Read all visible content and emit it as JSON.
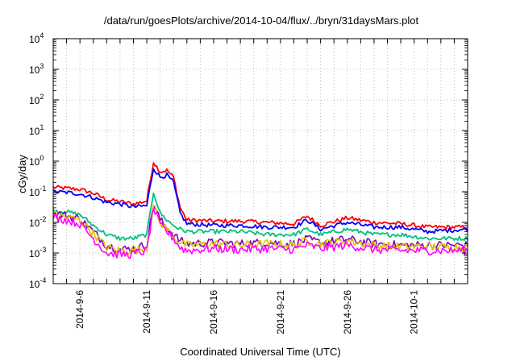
{
  "chart_data": {
    "type": "line",
    "title": "/data/run/goesPlots/archive/2014-10-04/flux/../bryn/31daysMars.plot",
    "xlabel": "Coordinated Universal Time (UTC)",
    "ylabel": "cGy/day",
    "yscale": "log",
    "ylim": [
      0.0001,
      10000
    ],
    "xlim": [
      "2014-09-04",
      "2014-10-05"
    ],
    "grid": true,
    "legend": "none",
    "x_ticks": [
      "2014-9-6",
      "2014-9-11",
      "2014-9-16",
      "2014-9-21",
      "2014-9-26",
      "2014-10-1"
    ],
    "y_ticks": [
      {
        "value": 0.0001,
        "base": "10",
        "exp": "-4"
      },
      {
        "value": 0.001,
        "base": "10",
        "exp": "-3"
      },
      {
        "value": 0.01,
        "base": "10",
        "exp": "-2"
      },
      {
        "value": 0.1,
        "base": "10",
        "exp": "-1"
      },
      {
        "value": 1,
        "base": "10",
        "exp": "0"
      },
      {
        "value": 10,
        "base": "10",
        "exp": "1"
      },
      {
        "value": 100,
        "base": "10",
        "exp": "2"
      },
      {
        "value": 1000,
        "base": "10",
        "exp": "3"
      },
      {
        "value": 10000,
        "base": "10",
        "exp": "4"
      }
    ],
    "series": [
      {
        "color": "#ff0000",
        "x": [
          "2014-09-04",
          "2014-09-05",
          "2014-09-06",
          "2014-09-07",
          "2014-09-08",
          "2014-09-09",
          "2014-09-10",
          "2014-09-11",
          "2014-09-11T12:00",
          "2014-09-12",
          "2014-09-12T12:00",
          "2014-09-13",
          "2014-09-13T12:00",
          "2014-09-14",
          "2014-09-16",
          "2014-09-18",
          "2014-09-20",
          "2014-09-22",
          "2014-09-23",
          "2014-09-24",
          "2014-09-26",
          "2014-09-28",
          "2014-09-30",
          "2014-10-02",
          "2014-10-05"
        ],
        "values": [
          0.14,
          0.13,
          0.12,
          0.09,
          0.055,
          0.048,
          0.04,
          0.05,
          0.95,
          0.45,
          0.5,
          0.3,
          0.03,
          0.012,
          0.011,
          0.011,
          0.01,
          0.009,
          0.016,
          0.008,
          0.014,
          0.01,
          0.009,
          0.007,
          0.007
        ]
      },
      {
        "color": "#0000ff",
        "x": [
          "2014-09-04",
          "2014-09-05",
          "2014-09-06",
          "2014-09-07",
          "2014-09-08",
          "2014-09-09",
          "2014-09-10",
          "2014-09-11",
          "2014-09-11T12:00",
          "2014-09-12",
          "2014-09-12T12:00",
          "2014-09-13",
          "2014-09-13T12:00",
          "2014-09-14",
          "2014-09-16",
          "2014-09-18",
          "2014-09-20",
          "2014-09-22",
          "2014-09-23",
          "2014-09-24",
          "2014-09-26",
          "2014-09-28",
          "2014-09-30",
          "2014-10-02",
          "2014-10-05"
        ],
        "values": [
          0.1,
          0.095,
          0.085,
          0.065,
          0.045,
          0.04,
          0.032,
          0.035,
          0.6,
          0.3,
          0.35,
          0.2,
          0.02,
          0.009,
          0.008,
          0.008,
          0.007,
          0.007,
          0.012,
          0.006,
          0.01,
          0.007,
          0.007,
          0.005,
          0.006
        ]
      },
      {
        "color": "#00c080",
        "x": [
          "2014-09-04",
          "2014-09-05",
          "2014-09-06",
          "2014-09-07",
          "2014-09-08",
          "2014-09-09",
          "2014-09-10",
          "2014-09-11",
          "2014-09-11T12:00",
          "2014-09-12",
          "2014-09-12T12:00",
          "2014-09-13",
          "2014-09-13T12:00",
          "2014-09-14",
          "2014-09-16",
          "2014-09-18",
          "2014-09-20",
          "2014-09-22",
          "2014-09-23",
          "2014-09-24",
          "2014-09-26",
          "2014-09-28",
          "2014-09-30",
          "2014-10-02",
          "2014-10-05"
        ],
        "values": [
          0.025,
          0.022,
          0.018,
          0.008,
          0.004,
          0.003,
          0.003,
          0.004,
          0.1,
          0.02,
          0.012,
          0.008,
          0.006,
          0.005,
          0.005,
          0.005,
          0.004,
          0.004,
          0.006,
          0.004,
          0.006,
          0.004,
          0.004,
          0.003,
          0.003
        ]
      },
      {
        "color": "#8000c0",
        "x": [
          "2014-09-04",
          "2014-09-05",
          "2014-09-06",
          "2014-09-07",
          "2014-09-08",
          "2014-09-09",
          "2014-09-10",
          "2014-09-11",
          "2014-09-11T12:00",
          "2014-09-12",
          "2014-09-12T12:00",
          "2014-09-13",
          "2014-09-13T12:00",
          "2014-09-14",
          "2014-09-16",
          "2014-09-18",
          "2014-09-20",
          "2014-09-22",
          "2014-09-23",
          "2014-09-24",
          "2014-09-26",
          "2014-09-28",
          "2014-09-30",
          "2014-10-02",
          "2014-10-05"
        ],
        "values": [
          0.02,
          0.017,
          0.013,
          0.005,
          0.0018,
          0.0013,
          0.0014,
          0.0018,
          0.04,
          0.012,
          0.007,
          0.004,
          0.0025,
          0.002,
          0.0022,
          0.002,
          0.0022,
          0.002,
          0.0028,
          0.0022,
          0.0028,
          0.002,
          0.0018,
          0.0018,
          0.0018
        ]
      },
      {
        "color": "#e0c000",
        "x": [
          "2014-09-04",
          "2014-09-05",
          "2014-09-06",
          "2014-09-07",
          "2014-09-08",
          "2014-09-09",
          "2014-09-10",
          "2014-09-11",
          "2014-09-11T12:00",
          "2014-09-12",
          "2014-09-12T12:00",
          "2014-09-13",
          "2014-09-13T12:00",
          "2014-09-14",
          "2014-09-16",
          "2014-09-18",
          "2014-09-20",
          "2014-09-22",
          "2014-09-23",
          "2014-09-24",
          "2014-09-26",
          "2014-09-28",
          "2014-09-30",
          "2014-10-02",
          "2014-10-05"
        ],
        "values": [
          0.018,
          0.015,
          0.012,
          0.0045,
          0.0015,
          0.0012,
          0.0012,
          0.0015,
          0.035,
          0.01,
          0.006,
          0.0035,
          0.0022,
          0.0018,
          0.002,
          0.0018,
          0.002,
          0.0018,
          0.0025,
          0.002,
          0.0025,
          0.0018,
          0.0016,
          0.0016,
          0.0016
        ]
      },
      {
        "color": "#ff00ff",
        "x": [
          "2014-09-04",
          "2014-09-05",
          "2014-09-06",
          "2014-09-07",
          "2014-09-08",
          "2014-09-09",
          "2014-09-10",
          "2014-09-11",
          "2014-09-11T12:00",
          "2014-09-12",
          "2014-09-12T12:00",
          "2014-09-13",
          "2014-09-13T12:00",
          "2014-09-14",
          "2014-09-16",
          "2014-09-18",
          "2014-09-20",
          "2014-09-22",
          "2014-09-23",
          "2014-09-24",
          "2014-09-26",
          "2014-09-28",
          "2014-09-30",
          "2014-10-02",
          "2014-10-05"
        ],
        "values": [
          0.015,
          0.012,
          0.009,
          0.003,
          0.001,
          0.0009,
          0.0009,
          0.0012,
          0.03,
          0.008,
          0.005,
          0.003,
          0.0015,
          0.0012,
          0.0014,
          0.0013,
          0.0014,
          0.0013,
          0.0018,
          0.0014,
          0.0018,
          0.0013,
          0.0012,
          0.0012,
          0.0012
        ]
      }
    ]
  }
}
